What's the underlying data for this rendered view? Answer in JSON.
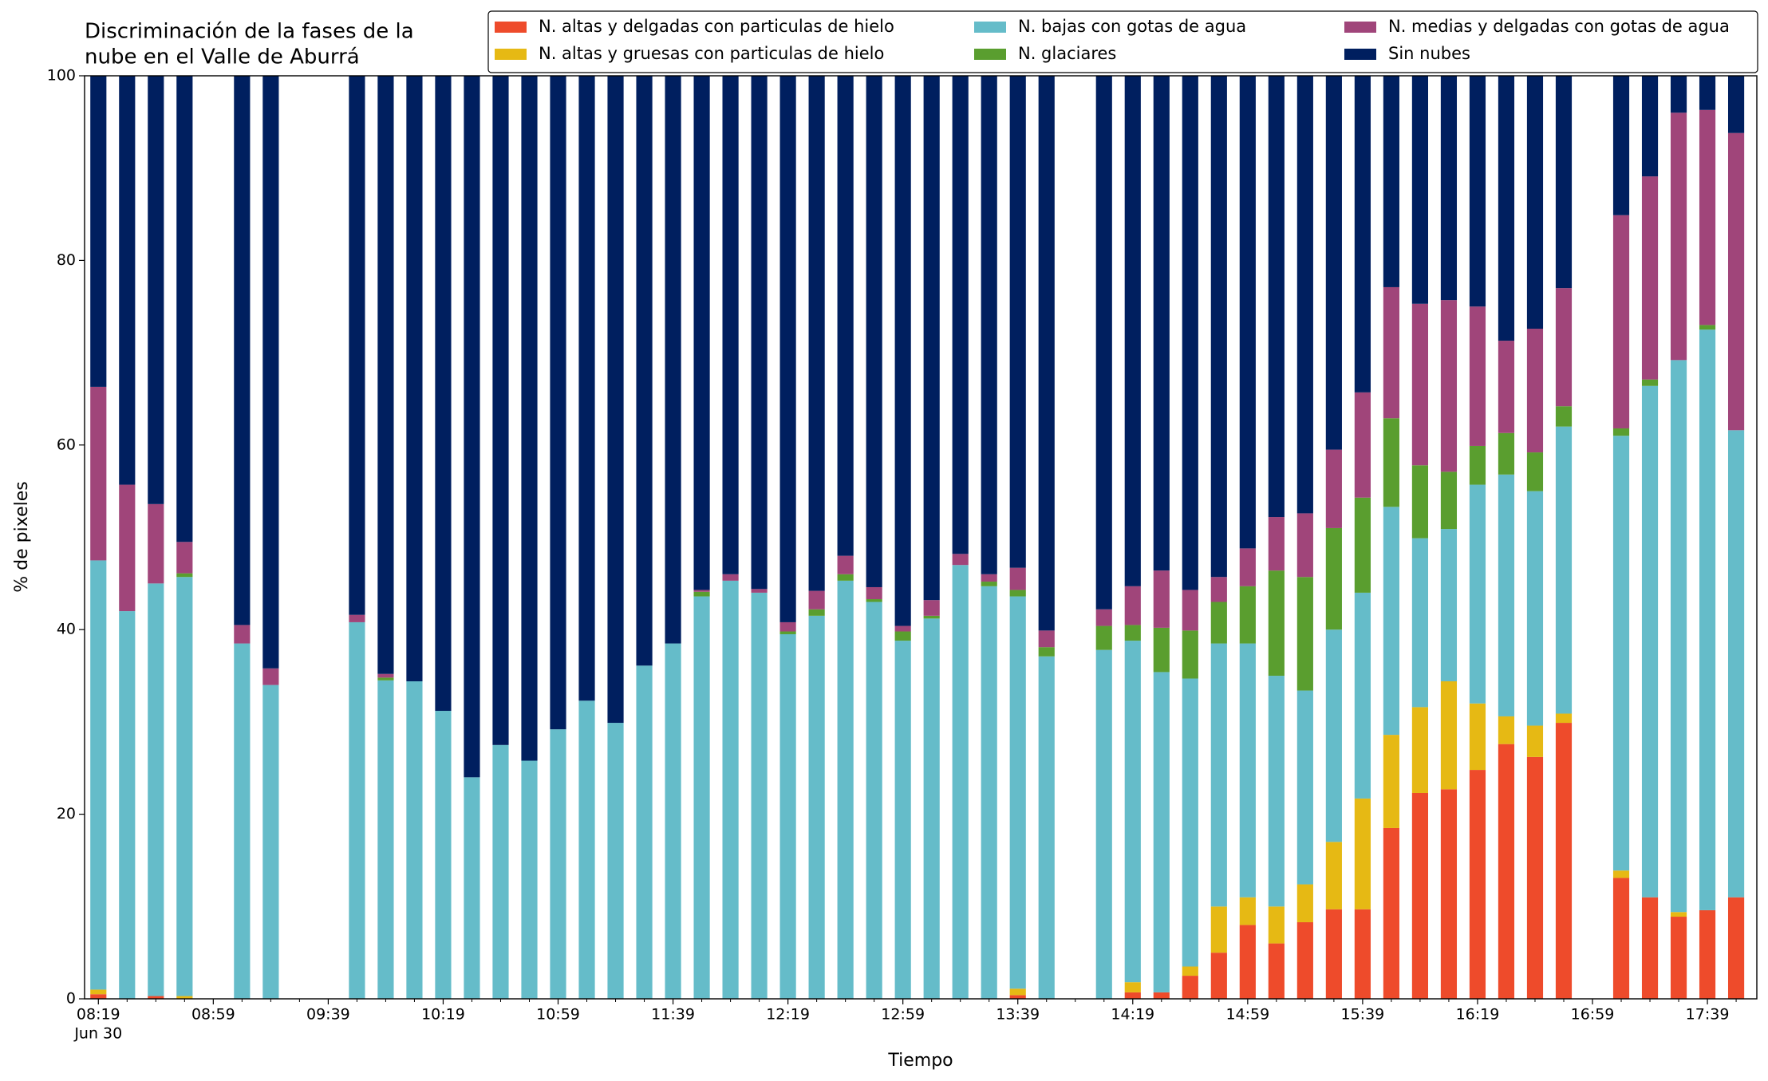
{
  "chart_data": {
    "type": "stacked_bar",
    "title": [
      "Discriminación de la fases de la",
      "nube en el Valle de Aburrá"
    ],
    "xlabel": "Tiempo",
    "ylabel": "% de pixeles",
    "x_date_label": "Jun 30",
    "categories": [
      "08:19",
      null,
      null,
      null,
      "08:59",
      null,
      null,
      null,
      "09:39",
      null,
      null,
      null,
      "10:19",
      null,
      null,
      null,
      "10:59",
      null,
      null,
      null,
      "11:39",
      null,
      null,
      null,
      "12:19",
      null,
      null,
      null,
      "12:59",
      null,
      null,
      null,
      "13:39",
      null,
      null,
      null,
      "14:19",
      null,
      null,
      null,
      "14:59",
      null,
      null,
      null,
      "15:39",
      null,
      null,
      null,
      "16:19",
      null,
      null,
      null,
      "16:59",
      null,
      null,
      null,
      "17:39",
      null
    ],
    "ylim": [
      0,
      100
    ],
    "yticks": [
      0,
      20,
      40,
      60,
      80,
      100
    ],
    "legend": "top-right",
    "legend_columns": 3,
    "series": [
      {
        "name": "N. altas y delgadas con particulas de hielo",
        "color": "#ee4b2b",
        "values": [
          0.5,
          0,
          0.3,
          0,
          null,
          0,
          0,
          null,
          null,
          0,
          0,
          0,
          0,
          0,
          0,
          0,
          0,
          0,
          0,
          0,
          0,
          0,
          0,
          0,
          0,
          0,
          0,
          0,
          0,
          0,
          0,
          0,
          0.4,
          0,
          null,
          0,
          0.7,
          0.7,
          2.5,
          5,
          8,
          6,
          8.3,
          9.7,
          9.7,
          18.5,
          22.3,
          22.7,
          24.8,
          27.6,
          26.2,
          29.9,
          null,
          13.1,
          11,
          8.9,
          9.6,
          11
        ]
      },
      {
        "name": "N. altas y gruesas con particulas de hielo",
        "color": "#e6b914",
        "values": [
          0.5,
          0,
          0,
          0.3,
          null,
          0,
          0,
          null,
          null,
          0,
          0,
          0,
          0,
          0,
          0,
          0,
          0,
          0,
          0,
          0,
          0,
          0,
          0,
          0,
          0,
          0,
          0,
          0,
          0,
          0,
          0,
          0,
          0.7,
          0,
          null,
          0,
          1.1,
          0,
          1,
          5,
          3,
          4,
          4.1,
          7.3,
          12,
          10.1,
          9.3,
          11.7,
          7.2,
          3,
          3.4,
          1,
          null,
          0.8,
          0,
          0.5,
          0,
          0
        ]
      },
      {
        "name": "N. bajas con gotas de agua",
        "color": "#65bcc9",
        "values": [
          46.5,
          42,
          44.7,
          45.4,
          null,
          38.5,
          34,
          null,
          null,
          40.8,
          34.5,
          34.4,
          31.2,
          24,
          27.5,
          25.8,
          29.2,
          32.3,
          29.9,
          36.1,
          38.5,
          43.6,
          45.3,
          44,
          39.5,
          41.5,
          45.3,
          43,
          38.8,
          41.2,
          47,
          44.7,
          42.5,
          37.1,
          null,
          37.8,
          37,
          34.7,
          31.2,
          28.5,
          27.5,
          25,
          21,
          23,
          22.3,
          24.7,
          18.3,
          16.5,
          23.7,
          26.2,
          25.4,
          31.1,
          null,
          47.1,
          55.4,
          59.8,
          62.9,
          50.6
        ]
      },
      {
        "name": "N. glaciares",
        "color": "#5a9e2f",
        "values": [
          0,
          0,
          0,
          0.4,
          null,
          0,
          0,
          null,
          null,
          0,
          0.3,
          0,
          0,
          0,
          0,
          0,
          0,
          0,
          0,
          0,
          0,
          0.5,
          0,
          0,
          0.3,
          0.7,
          0.7,
          0.3,
          1,
          0.3,
          0,
          0.5,
          0.7,
          1,
          null,
          2.6,
          1.7,
          4.8,
          5.2,
          4.5,
          6.2,
          11.4,
          12.3,
          11,
          10.3,
          9.6,
          7.9,
          6.2,
          4.2,
          4.5,
          4.2,
          2.2,
          null,
          0.8,
          0.7,
          0,
          0.5,
          0
        ]
      },
      {
        "name": "N. medias y delgadas con gotas de agua",
        "color": "#a0457a",
        "values": [
          18.8,
          13.7,
          8.6,
          3.4,
          null,
          2,
          1.8,
          null,
          null,
          0.8,
          0.4,
          0,
          0,
          0,
          0,
          0,
          0,
          0,
          0,
          0,
          0,
          0.2,
          0.7,
          0.4,
          1,
          2,
          2,
          1.3,
          0.6,
          1.7,
          1.2,
          0.8,
          2.4,
          1.8,
          null,
          1.8,
          4.2,
          6.2,
          4.4,
          2.7,
          4.1,
          5.8,
          6.9,
          8.5,
          11.4,
          14.2,
          17.5,
          18.6,
          15.1,
          10,
          13.4,
          12.8,
          null,
          23.1,
          22,
          26.8,
          23.3,
          32.2
        ]
      },
      {
        "name": "Sin nubes",
        "color": "#001f5f",
        "values": [
          33.7,
          44.3,
          46.4,
          50.5,
          null,
          59.5,
          64.2,
          null,
          null,
          58.4,
          64.8,
          65.6,
          68.8,
          76,
          72.5,
          74.2,
          70.8,
          67.7,
          70.1,
          63.9,
          61.5,
          55.7,
          54,
          55.6,
          59.2,
          55.8,
          52,
          55.4,
          59.6,
          56.8,
          51.8,
          54,
          53.3,
          60.1,
          null,
          57.8,
          55.3,
          53.6,
          55.7,
          54.3,
          51.2,
          47.8,
          47.4,
          40.5,
          34.3,
          22.9,
          24.7,
          24.3,
          25,
          28.7,
          27.4,
          23,
          null,
          15.1,
          10.9,
          4,
          3.7,
          6.2
        ]
      }
    ]
  }
}
